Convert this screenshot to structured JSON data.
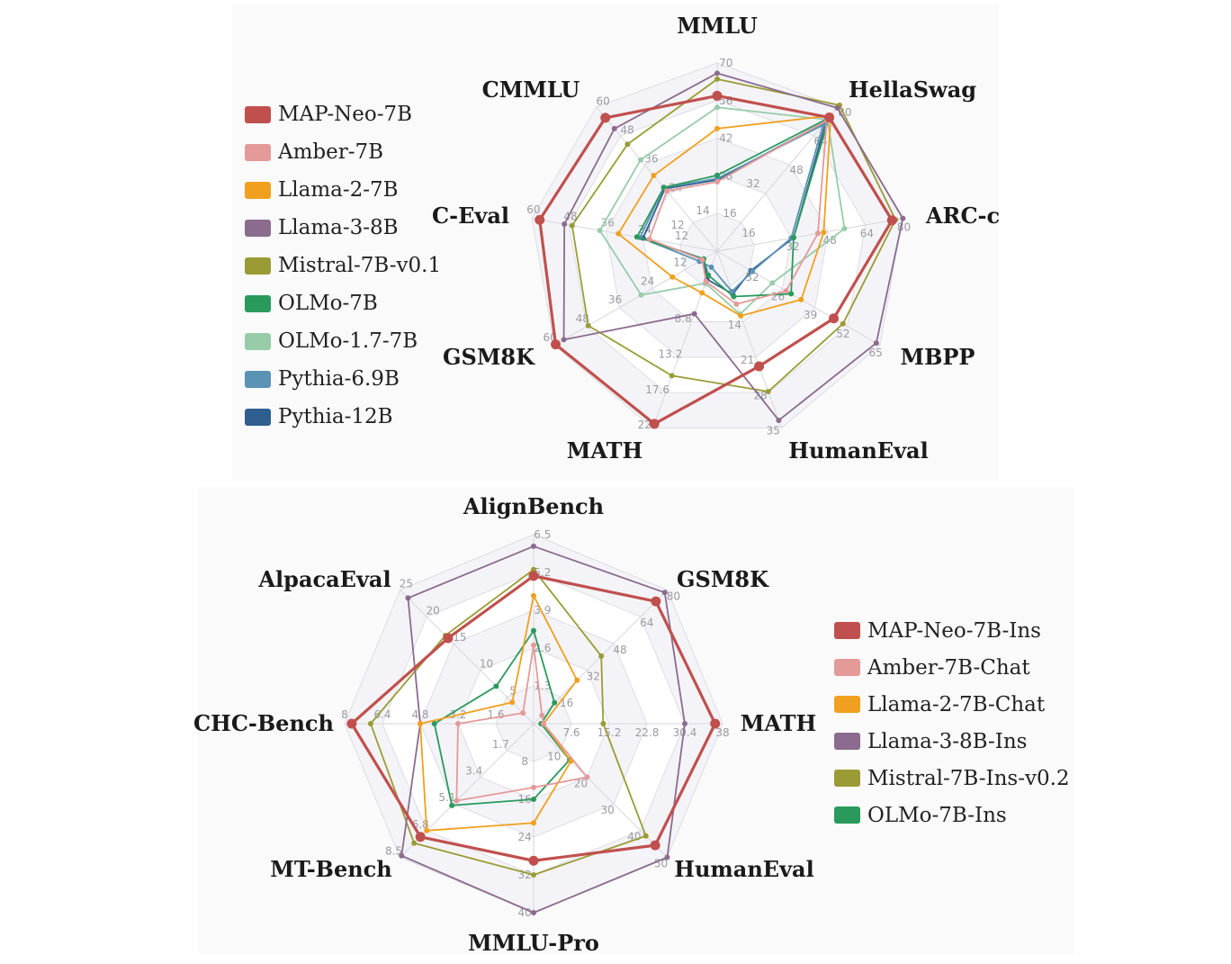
{
  "chart_data": [
    {
      "type": "radar",
      "axes": [
        {
          "name": "MMLU",
          "max": 70,
          "ticks": [
            "28",
            "42",
            "56",
            "70"
          ]
        },
        {
          "name": "HellaSwag",
          "max": 80,
          "ticks": [
            "48",
            "64",
            "80"
          ]
        },
        {
          "name": "ARC-c",
          "max": 80,
          "ticks": [
            "32",
            "48",
            "64",
            "80"
          ]
        },
        {
          "name": "MBPP",
          "max": 65,
          "ticks": [
            "26",
            "39",
            "52",
            "65"
          ]
        },
        {
          "name": "HumanEval",
          "max": 35,
          "ticks": [
            "14",
            "21",
            "28",
            "35"
          ]
        },
        {
          "name": "MATH",
          "max": 22,
          "ticks": [
            "8.8",
            "13.2",
            "17.6",
            "22"
          ]
        },
        {
          "name": "GSM8K",
          "max": 60,
          "ticks": [
            "12",
            "24",
            "36",
            "48",
            "60"
          ]
        },
        {
          "name": "C-Eval",
          "max": 60,
          "ticks": [
            "12",
            "24",
            "36",
            "48",
            "60"
          ]
        },
        {
          "name": "CMMLU",
          "max": 60,
          "ticks": [
            "24",
            "36",
            "48",
            "60"
          ]
        }
      ],
      "extra_tick_labels": [
        "14",
        "16",
        "32",
        "12",
        "16",
        "32"
      ],
      "series": [
        {
          "name": "MAP-Neo-7B",
          "color": "#c0504d",
          "values": [
            57.8,
            74.2,
            75.5,
            46.5,
            22.8,
            21.5,
            59.5,
            57.5,
            55.5
          ]
        },
        {
          "name": "Amber-7B",
          "color": "#e49a98",
          "values": [
            25.8,
            72.5,
            43.5,
            27.5,
            10.5,
            3.8,
            5.5,
            22.0,
            25.0
          ]
        },
        {
          "name": "Llama-2-7B",
          "color": "#f0a01e",
          "values": [
            45.6,
            75.2,
            46.0,
            33.5,
            12.8,
            5.2,
            16.5,
            32.0,
            31.5
          ]
        },
        {
          "name": "Llama-3-8B",
          "color": "#8b6b8e",
          "values": [
            66.2,
            79.5,
            80.2,
            63.5,
            33.5,
            7.8,
            56.5,
            49.5,
            51.0
          ]
        },
        {
          "name": "Mistral-7B-v0.1",
          "color": "#9b9b35",
          "values": [
            64.0,
            81.0,
            77.0,
            50.2,
            27.8,
            15.5,
            47.5,
            47.0,
            44.5
          ]
        },
        {
          "name": "OLMo-7B",
          "color": "#2a9a5c",
          "values": [
            28.2,
            74.0,
            33.0,
            29.5,
            9.0,
            3.0,
            5.0,
            26.0,
            26.5
          ]
        },
        {
          "name": "OLMo-1.7-7B",
          "color": "#98cca8",
          "values": [
            53.5,
            73.0,
            55.0,
            22.0,
            12.5,
            4.0,
            28.0,
            38.0,
            38.0
          ]
        },
        {
          "name": "Pythia-6.9B",
          "color": "#5b93b5",
          "values": [
            27.0,
            70.0,
            32.0,
            14.0,
            8.0,
            2.0,
            6.5,
            25.0,
            26.5
          ]
        },
        {
          "name": "Pythia-12B",
          "color": "#2f5f8e",
          "values": [
            26.5,
            72.0,
            33.0,
            13.5,
            8.5,
            3.5,
            5.0,
            24.0,
            26.0
          ]
        }
      ]
    },
    {
      "type": "radar",
      "axes": [
        {
          "name": "AlignBench",
          "max": 6.5,
          "ticks": [
            "1.3",
            "2.6",
            "3.9",
            "5.2",
            "6.5"
          ]
        },
        {
          "name": "GSM8K",
          "max": 80,
          "ticks": [
            "16",
            "32",
            "48",
            "64",
            "80"
          ]
        },
        {
          "name": "MATH",
          "max": 38,
          "ticks": [
            "7.6",
            "15.2",
            "22.8",
            "30.4",
            "38"
          ]
        },
        {
          "name": "HumanEval",
          "max": 50,
          "ticks": [
            "10",
            "20",
            "30",
            "40",
            "50"
          ]
        },
        {
          "name": "MMLU-Pro",
          "max": 40,
          "ticks": [
            "8",
            "16",
            "24",
            "32",
            "40"
          ]
        },
        {
          "name": "MT-Bench",
          "max": 8.5,
          "ticks": [
            "1.7",
            "3.4",
            "5.1",
            "6.8",
            "8.5"
          ]
        },
        {
          "name": "CHC-Bench",
          "max": 8,
          "ticks": [
            "1.6",
            "3.2",
            "4.8",
            "6.4",
            "8"
          ]
        },
        {
          "name": "AlpacaEval",
          "max": 25,
          "ticks": [
            "5",
            "10",
            "15",
            "20",
            "25"
          ]
        }
      ],
      "series": [
        {
          "name": "MAP-Neo-7B-Ins",
          "color": "#c0504d",
          "values": [
            5.08,
            73.2,
            36.5,
            45.5,
            29.0,
            7.2,
            7.7,
            16.0
          ]
        },
        {
          "name": "Amber-7B-Chat",
          "color": "#e49a98",
          "values": [
            2.7,
            5.0,
            2.0,
            20.0,
            13.5,
            4.9,
            3.2,
            2.0
          ]
        },
        {
          "name": "Llama-2-7B-Chat",
          "color": "#f0a01e",
          "values": [
            4.4,
            26.0,
            2.0,
            14.0,
            21.0,
            6.8,
            4.8,
            4.0
          ]
        },
        {
          "name": "Llama-3-8B-Ins",
          "color": "#8b6b8e",
          "values": [
            6.1,
            78.5,
            30.4,
            50.0,
            40.0,
            8.4,
            4.8,
            23.5
          ]
        },
        {
          "name": "Mistral-7B-Ins-v0.2",
          "color": "#9b9b35",
          "values": [
            5.3,
            40.5,
            14.0,
            42.0,
            32.0,
            7.6,
            6.9,
            16.5
          ]
        },
        {
          "name": "OLMo-7B-Ins",
          "color": "#2a9a5c",
          "values": [
            3.2,
            12.5,
            1.5,
            13.5,
            16.0,
            5.2,
            4.2,
            7.0
          ]
        }
      ]
    }
  ]
}
